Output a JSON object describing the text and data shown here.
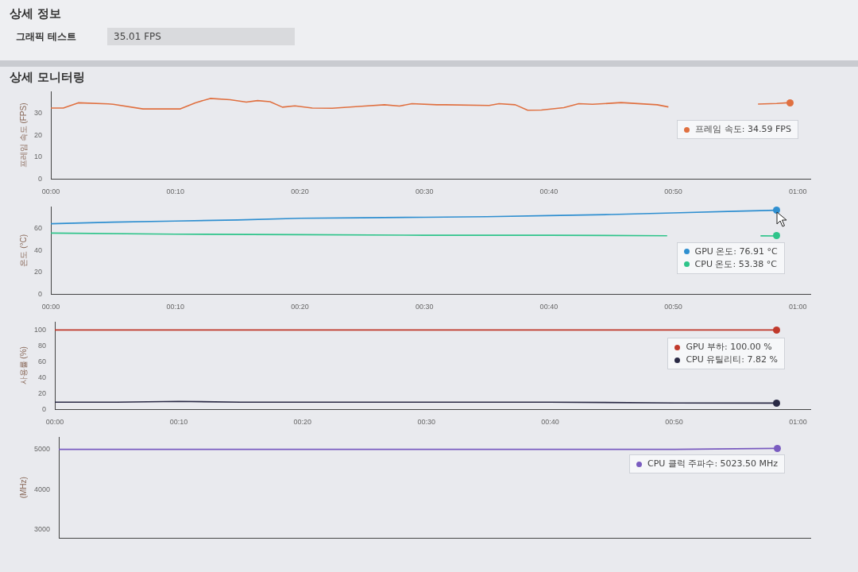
{
  "chart_data": [
    {
      "type": "other",
      "title": "상세 정보",
      "annotations": [
        "그래픽 테스트",
        "35.01 FPS"
      ]
    },
    {
      "type": "line",
      "title": "상세 모니터링",
      "ylabel": "프레임 속도 (FPS)",
      "marker": "none",
      "grid": false,
      "xlim": [
        0,
        61
      ],
      "xticks": [
        {
          "value": 0,
          "label": "00:00"
        },
        {
          "value": 10,
          "label": "00:10"
        },
        {
          "value": 20,
          "label": "00:20"
        },
        {
          "value": 30,
          "label": "00:30"
        },
        {
          "value": 40,
          "label": "00:40"
        },
        {
          "value": 50,
          "label": "00:50"
        },
        {
          "value": 60,
          "label": "01:00"
        }
      ],
      "ylim": [
        0,
        40
      ],
      "yticks": [
        0,
        10,
        20,
        30
      ],
      "series": [
        {
          "color": "#e07040",
          "x": [
            0,
            1,
            2.2,
            4.6,
            5,
            7.4,
            10.4,
            11.6,
            12.8,
            14.4,
            15.7,
            16.6,
            17.6,
            18.6,
            19.6,
            21,
            22.6,
            25.2,
            26.8,
            28,
            29,
            31,
            31.7,
            35.2,
            36,
            37.3,
            38.3,
            39.4,
            41.2,
            42.4,
            43.5,
            45.8,
            48.7,
            49.6,
            53,
            56.8,
            58.3,
            59.4
          ],
          "values": [
            32.5,
            32.5,
            34.9,
            34.4,
            34.2,
            32.1,
            32.1,
            34.9,
            36.9,
            36.3,
            35.2,
            35.9,
            35.4,
            32.9,
            33.5,
            32.5,
            32.4,
            33.4,
            34,
            33.4,
            34.5,
            34,
            34,
            33.7,
            34.5,
            34,
            31.5,
            31.6,
            32.7,
            34.5,
            34.2,
            35,
            34,
            33,
            null,
            34.3,
            34.59,
            35
          ]
        }
      ],
      "annotations": [
        "프레임 속도: 34.59 FPS"
      ]
    },
    {
      "type": "line",
      "ylabel": "온도 (°C)",
      "marker": "none",
      "grid": false,
      "xlim": [
        0,
        61
      ],
      "xticks": [
        {
          "value": 0,
          "label": "00:00"
        },
        {
          "value": 10,
          "label": "00:10"
        },
        {
          "value": 20,
          "label": "00:20"
        },
        {
          "value": 30,
          "label": "00:30"
        },
        {
          "value": 40,
          "label": "00:40"
        },
        {
          "value": 50,
          "label": "00:50"
        },
        {
          "value": 60,
          "label": "01:00"
        }
      ],
      "ylim": [
        0,
        80
      ],
      "yticks": [
        0,
        20,
        40,
        60
      ],
      "series": [
        {
          "color": "#2f8fd0",
          "x": [
            0,
            5,
            10,
            15,
            20,
            25,
            30,
            35,
            40,
            45,
            50,
            55,
            58.3
          ],
          "values": [
            64.5,
            66,
            67,
            68,
            69.5,
            70,
            70.5,
            71,
            72,
            73,
            74.5,
            76,
            76.91
          ]
        },
        {
          "color": "#2ec48a",
          "x": [
            0,
            10,
            20,
            30,
            40,
            49.5,
            53,
            57,
            58.3
          ],
          "values": [
            56,
            55,
            54.5,
            54,
            54,
            53.5,
            null,
            53.4,
            53.38
          ]
        }
      ],
      "annotations": [
        "GPU 온도: 76.91 °C",
        "CPU 온도: 53.38 °C"
      ]
    },
    {
      "type": "line",
      "ylabel": "사용률 (%)",
      "marker": "none",
      "grid": false,
      "xlim": [
        0,
        61
      ],
      "xticks": [
        {
          "value": 0,
          "label": "00:00"
        },
        {
          "value": 10,
          "label": "00:10"
        },
        {
          "value": 20,
          "label": "00:20"
        },
        {
          "value": 30,
          "label": "00:30"
        },
        {
          "value": 40,
          "label": "00:40"
        },
        {
          "value": 50,
          "label": "00:50"
        },
        {
          "value": 60,
          "label": "01:00"
        }
      ],
      "ylim": [
        0,
        110
      ],
      "yticks": [
        0,
        20,
        40,
        60,
        80,
        100
      ],
      "series": [
        {
          "color": "#c0392b",
          "x": [
            0,
            10,
            20,
            30,
            40,
            50,
            58.3
          ],
          "values": [
            100,
            100,
            100,
            100,
            100,
            100,
            100
          ]
        },
        {
          "color": "#2a2a45",
          "x": [
            0,
            5,
            10,
            15,
            20,
            30,
            40,
            50,
            58.3
          ],
          "values": [
            9,
            9,
            10,
            9,
            9,
            9,
            9,
            8,
            7.82
          ]
        }
      ],
      "annotations": [
        "GPU 부하: 100.00 %",
        "CPU 유틸리티: 7.82 %"
      ]
    },
    {
      "type": "line",
      "ylabel": "(MHz)",
      "marker": "none",
      "grid": false,
      "tick_labels": "y",
      "xlim": [
        0,
        61
      ],
      "ylim": [
        2800,
        5300
      ],
      "yticks": [
        3000,
        4000,
        5000
      ],
      "series": [
        {
          "color": "#7a5cc0",
          "x": [
            0,
            10,
            20,
            30,
            40,
            50,
            58.3
          ],
          "values": [
            5000,
            5000,
            5000,
            5000,
            5000,
            5000,
            5023.5
          ]
        }
      ],
      "annotations": [
        "CPU 클럭 주파수: 5023.50 MHz"
      ]
    }
  ]
}
